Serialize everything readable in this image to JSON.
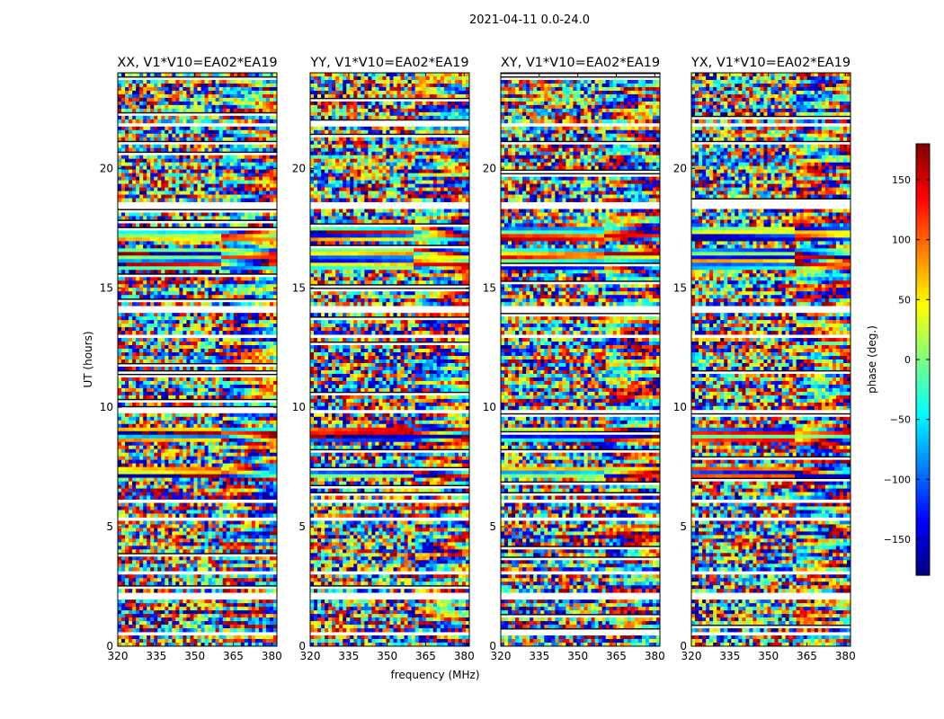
{
  "chart_data": {
    "type": "heatmap",
    "suptitle": "2021-04-11 0.0-24.0",
    "xlabel": "frequency (MHz)",
    "ylabel": "UT (hours)",
    "xlim": [
      320,
      382
    ],
    "ylim": [
      0,
      24
    ],
    "x_ticks": [
      320,
      335,
      350,
      365,
      380
    ],
    "y_ticks": [
      0,
      5,
      10,
      15,
      20
    ],
    "panels": [
      {
        "title": "XX, V1*V10=EA02*EA19"
      },
      {
        "title": "YY, V1*V10=EA02*EA19"
      },
      {
        "title": "XY, V1*V10=EA02*EA19"
      },
      {
        "title": "YX, V1*V10=EA02*EA19"
      }
    ],
    "colorbar": {
      "label": "phase (deg.)",
      "min": -180,
      "max": 180,
      "ticks": [
        -150,
        -100,
        -50,
        0,
        50,
        100,
        150
      ],
      "tick_labels": [
        "−150",
        "−100",
        "−50",
        "0",
        "50",
        "100",
        "150"
      ],
      "colormap": "jet"
    },
    "blank_bands_ut": [
      [
        2.0,
        2.3
      ],
      [
        14.0,
        14.3
      ],
      [
        9.7,
        9.9
      ],
      [
        18.3,
        18.6
      ],
      [
        3.0,
        3.15
      ],
      [
        17.8,
        17.9
      ],
      [
        5.3,
        5.4
      ],
      [
        11.8,
        11.9
      ],
      [
        12.9,
        13.0
      ],
      [
        21.8,
        21.9
      ],
      [
        0.5,
        0.6
      ],
      [
        6.0,
        6.1
      ],
      [
        8.2,
        8.3
      ],
      [
        16.9,
        17.0
      ],
      [
        13.6,
        13.7
      ],
      [
        19.0,
        19.1
      ],
      [
        23.5,
        23.6
      ]
    ],
    "smooth_bands_ut": [
      [
        15.8,
        16.6
      ],
      [
        7.0,
        7.5
      ],
      [
        8.6,
        9.2
      ],
      [
        17.0,
        17.5
      ]
    ],
    "frequency_break_mhz": 360.5
  }
}
